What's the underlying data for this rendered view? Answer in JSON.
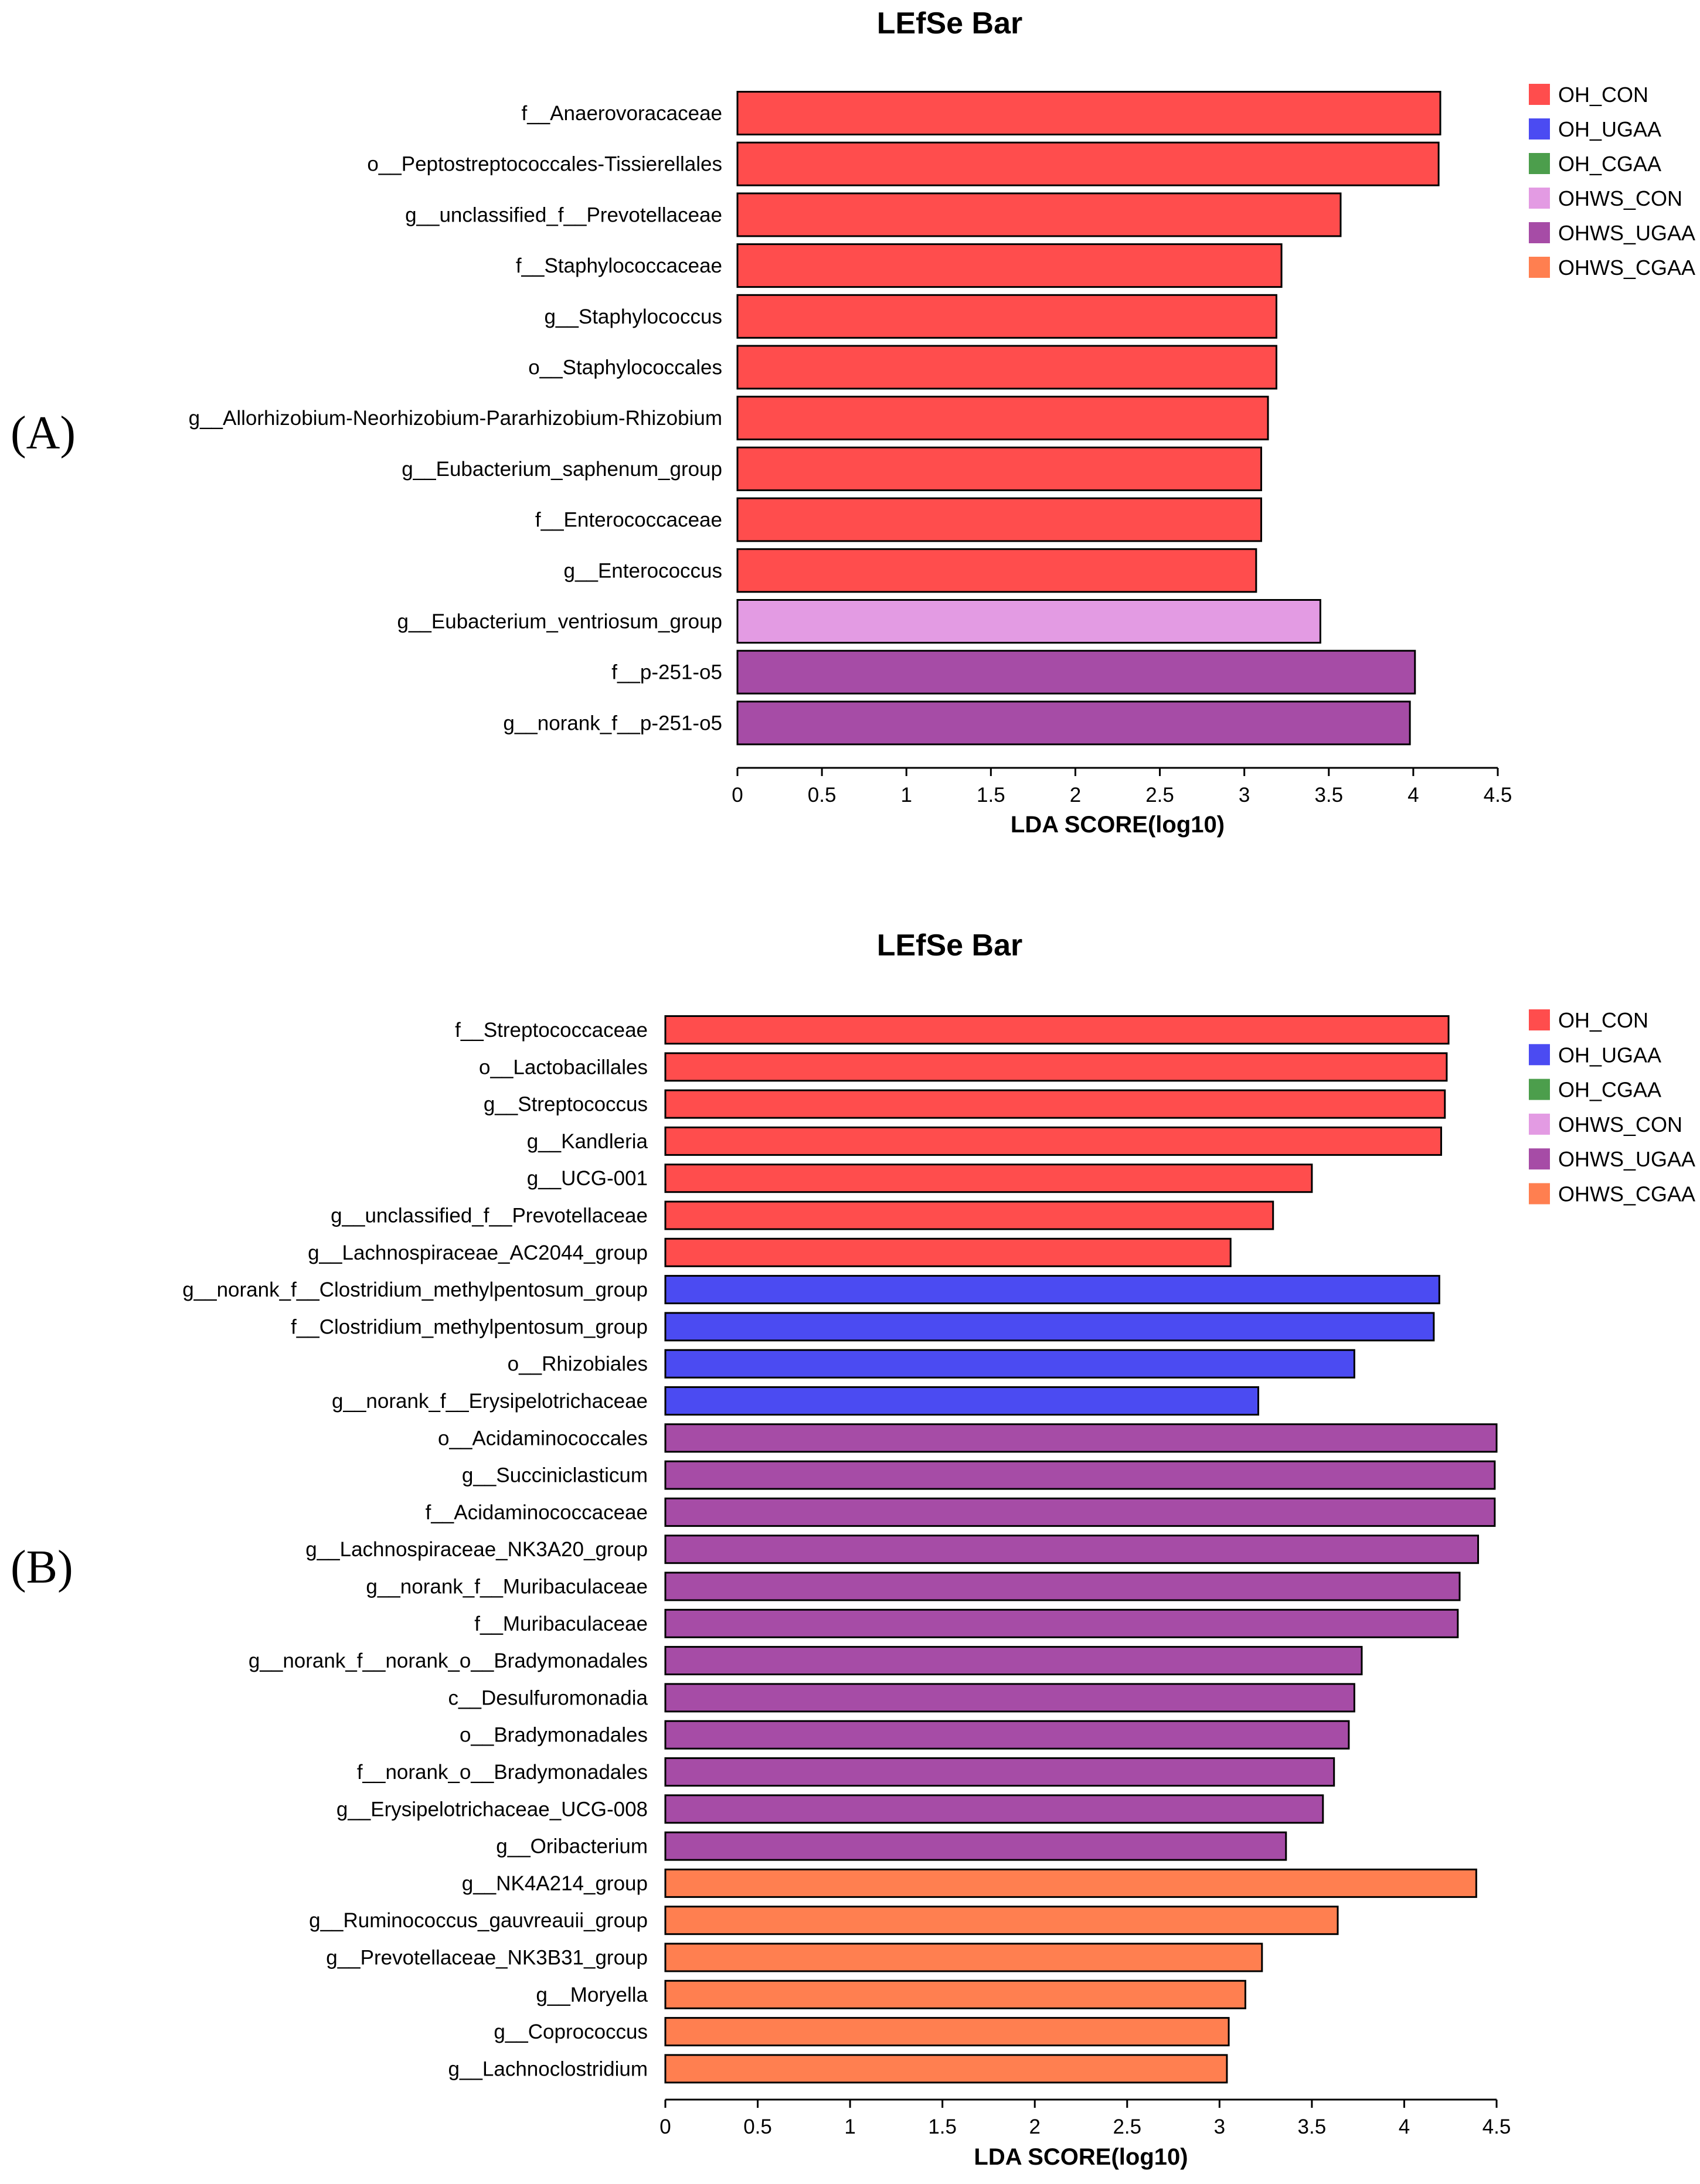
{
  "panels": [
    {
      "panel_label": "(A)",
      "legend_entries": [
        "OH_CON",
        "OH_UGAA",
        "OH_CGAA",
        "OHWS_CON",
        "OHWS_UGAA",
        "OHWS_CGAA"
      ]
    },
    {
      "panel_label": "(B)",
      "legend_entries": [
        "OH_CON",
        "OH_UGAA",
        "OH_CGAA",
        "OHWS_CON",
        "OHWS_UGAA",
        "OHWS_CGAA"
      ]
    }
  ],
  "colors": {
    "OH_CON": "#ff4d4d",
    "OH_UGAA": "#4b4bf2",
    "OH_CGAA": "#4c9e4c",
    "OHWS_CON": "#e39be3",
    "OHWS_UGAA": "#a64ca6",
    "OHWS_CGAA": "#ff7f50"
  },
  "chart_data": [
    {
      "type": "bar",
      "orientation": "horizontal",
      "title": "LEfSe Bar",
      "xlabel": "LDA SCORE(log10)",
      "ylabel": "",
      "xlim": [
        0,
        4.5
      ],
      "xticks": [
        "0",
        "0.5",
        "1",
        "1.5",
        "2",
        "2.5",
        "3",
        "3.5",
        "4",
        "4.5"
      ],
      "legend_position": "top-right",
      "grid": false,
      "categories": [
        "f__Anaerovoracaceae",
        "o__Peptostreptococcales-Tissierellales",
        "g__unclassified_f__Prevotellaceae",
        "f__Staphylococcaceae",
        "g__Staphylococcus",
        "o__Staphylococcales",
        "g__Allorhizobium-Neorhizobium-Pararhizobium-Rhizobium",
        "g__Eubacterium_saphenum_group",
        "f__Enterococcaceae",
        "g__Enterococcus",
        "g__Eubacterium_ventriosum_group",
        "f__p-251-o5",
        "g__norank_f__p-251-o5"
      ],
      "values": [
        4.16,
        4.15,
        3.57,
        3.22,
        3.19,
        3.19,
        3.14,
        3.1,
        3.1,
        3.07,
        3.45,
        4.01,
        3.98
      ],
      "groups": [
        "OH_CON",
        "OH_CON",
        "OH_CON",
        "OH_CON",
        "OH_CON",
        "OH_CON",
        "OH_CON",
        "OH_CON",
        "OH_CON",
        "OH_CON",
        "OHWS_CON",
        "OHWS_UGAA",
        "OHWS_UGAA"
      ]
    },
    {
      "type": "bar",
      "orientation": "horizontal",
      "title": "LEfSe Bar",
      "xlabel": "LDA SCORE(log10)",
      "ylabel": "",
      "xlim": [
        0,
        4.5
      ],
      "xticks": [
        "0",
        "0.5",
        "1",
        "1.5",
        "2",
        "2.5",
        "3",
        "3.5",
        "4",
        "4.5"
      ],
      "legend_position": "top-right",
      "grid": false,
      "categories": [
        "f__Streptococcaceae",
        "o__Lactobacillales",
        "g__Streptococcus",
        "g__Kandleria",
        "g__UCG-001",
        "g__unclassified_f__Prevotellaceae",
        "g__Lachnospiraceae_AC2044_group",
        "g__norank_f__Clostridium_methylpentosum_group",
        "f__Clostridium_methylpentosum_group",
        "o__Rhizobiales",
        "g__norank_f__Erysipelotrichaceae",
        "o__Acidaminococcales",
        "g__Succiniclasticum",
        "f__Acidaminococcaceae",
        "g__Lachnospiraceae_NK3A20_group",
        "g__norank_f__Muribaculaceae",
        "f__Muribaculaceae",
        "g__norank_f__norank_o__Bradymonadales",
        "c__Desulfuromonadia",
        "o__Bradymonadales",
        "f__norank_o__Bradymonadales",
        "g__Erysipelotrichaceae_UCG-008",
        "g__Oribacterium",
        "g__NK4A214_group",
        "g__Ruminococcus_gauvreauii_group",
        "g__Prevotellaceae_NK3B31_group",
        "g__Moryella",
        "g__Coprococcus",
        "g__Lachnoclostridium"
      ],
      "values": [
        4.24,
        4.23,
        4.22,
        4.2,
        3.5,
        3.29,
        3.06,
        4.19,
        4.16,
        3.73,
        3.21,
        4.5,
        4.49,
        4.49,
        4.4,
        4.3,
        4.29,
        3.77,
        3.73,
        3.7,
        3.62,
        3.56,
        3.36,
        4.39,
        3.64,
        3.23,
        3.14,
        3.05,
        3.04
      ],
      "groups": [
        "OH_CON",
        "OH_CON",
        "OH_CON",
        "OH_CON",
        "OH_CON",
        "OH_CON",
        "OH_CON",
        "OH_UGAA",
        "OH_UGAA",
        "OH_UGAA",
        "OH_UGAA",
        "OHWS_UGAA",
        "OHWS_UGAA",
        "OHWS_UGAA",
        "OHWS_UGAA",
        "OHWS_UGAA",
        "OHWS_UGAA",
        "OHWS_UGAA",
        "OHWS_UGAA",
        "OHWS_UGAA",
        "OHWS_UGAA",
        "OHWS_UGAA",
        "OHWS_UGAA",
        "OHWS_CGAA",
        "OHWS_CGAA",
        "OHWS_CGAA",
        "OHWS_CGAA",
        "OHWS_CGAA",
        "OHWS_CGAA"
      ]
    }
  ]
}
